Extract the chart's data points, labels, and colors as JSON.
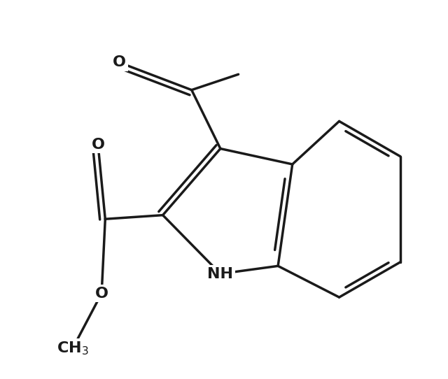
{
  "background_color": "#ffffff",
  "line_color": "#1a1a1a",
  "line_width": 2.5,
  "figsize": [
    6.4,
    5.42
  ],
  "dpi": 100,
  "text_color": "#1a1a1a",
  "font_size": 16,
  "xlim": [
    0,
    10
  ],
  "ylim": [
    0,
    8.5
  ]
}
